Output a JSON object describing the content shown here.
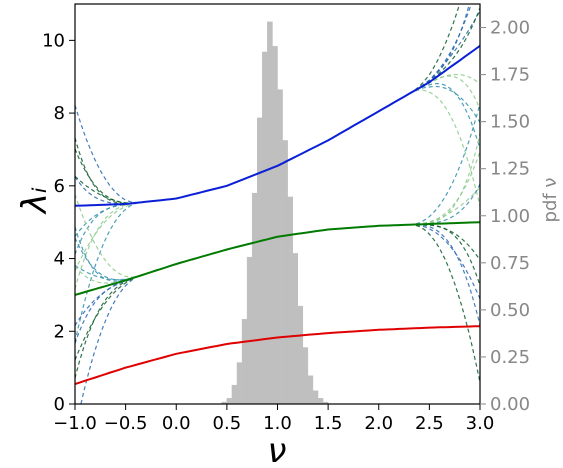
{
  "chart_data": {
    "type": "line",
    "xlabel": "ν",
    "ylabel": "λᵢ",
    "y2label": "pdf ν",
    "xlim": [
      -1.0,
      3.0
    ],
    "ylim": [
      0,
      11
    ],
    "y2lim": [
      0,
      2.125
    ],
    "x_ticks": [
      "−1.0",
      "−0.5",
      "0.0",
      "0.5",
      "1.0",
      "1.5",
      "2.0",
      "2.5",
      "3.0"
    ],
    "y_ticks": [
      "0",
      "2",
      "4",
      "6",
      "8",
      "10"
    ],
    "y2_ticks": [
      "0.00",
      "0.25",
      "0.50",
      "0.75",
      "1.00",
      "1.25",
      "1.50",
      "1.75",
      "2.00"
    ],
    "grid": false,
    "colors": {
      "histogram": "#bfbfbf",
      "lambda1": "#e00000",
      "lambda2": "#007a00",
      "lambda3": "#0a1fd6",
      "lambda3_overlay": "#0b3b6b",
      "dashed_dark_green": "#0a5a2a",
      "dashed_teal": "#2f8fa8",
      "dashed_blue": "#2766b0",
      "dashed_light_green": "#8cc98c",
      "right_axis": "#888888"
    },
    "series": [
      {
        "x": [
          -1.0,
          -0.5,
          0.0,
          0.5,
          1.0,
          1.5,
          2.0,
          2.5,
          3.0
        ],
        "values": [
          0.55,
          1.0,
          1.38,
          1.65,
          1.83,
          1.95,
          2.04,
          2.1,
          2.14
        ]
      },
      {
        "x": [
          -1.0,
          -0.5,
          0.0,
          0.5,
          1.0,
          1.5,
          2.0,
          2.5,
          3.0
        ],
        "values": [
          3.0,
          3.4,
          3.85,
          4.25,
          4.6,
          4.8,
          4.9,
          4.95,
          5.0
        ]
      },
      {
        "x": [
          -1.0,
          -0.5,
          0.0,
          0.5,
          1.0,
          1.5,
          2.0,
          2.5,
          3.0
        ],
        "values": [
          5.45,
          5.5,
          5.65,
          6.0,
          6.55,
          7.25,
          8.05,
          8.85,
          9.85
        ]
      }
    ],
    "histogram": {
      "bin_width": 0.05,
      "x_start": 0.45,
      "density": [
        0.01,
        0.03,
        0.1,
        0.22,
        0.45,
        0.78,
        1.12,
        1.52,
        1.87,
        2.03,
        1.9,
        1.67,
        1.4,
        1.1,
        0.8,
        0.52,
        0.3,
        0.15,
        0.07,
        0.03,
        0.01
      ]
    }
  }
}
